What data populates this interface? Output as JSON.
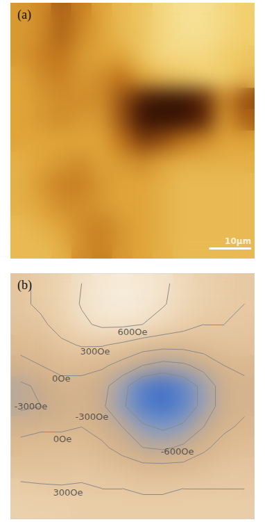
{
  "chart_data": [
    {
      "type": "heatmap",
      "title": "(a)",
      "tick_labels": false,
      "xlim": [
        0,
        58
      ],
      "ylim": [
        0,
        61
      ],
      "scale_bar": {
        "label": "10μm",
        "length": 10
      },
      "color_range": [
        0,
        1
      ],
      "cells": [
        [
          0.55,
          0.5,
          0.35,
          0.45,
          0.6,
          0.7,
          0.75,
          0.85,
          0.9,
          0.9,
          0.85,
          0.8
        ],
        [
          0.55,
          0.5,
          0.35,
          0.5,
          0.6,
          0.7,
          0.75,
          0.85,
          0.9,
          0.9,
          0.85,
          0.8
        ],
        [
          0.55,
          0.45,
          0.4,
          0.55,
          0.6,
          0.6,
          0.75,
          0.85,
          0.85,
          0.85,
          0.8,
          0.75
        ],
        [
          0.6,
          0.5,
          0.45,
          0.55,
          0.5,
          0.4,
          0.6,
          0.7,
          0.75,
          0.8,
          0.8,
          0.7
        ],
        [
          0.6,
          0.55,
          0.5,
          0.5,
          0.5,
          0.3,
          0.1,
          0.05,
          0.05,
          0.15,
          0.5,
          0.3
        ],
        [
          0.6,
          0.55,
          0.5,
          0.55,
          0.55,
          0.3,
          0.05,
          0.03,
          0.05,
          0.15,
          0.55,
          0.35
        ],
        [
          0.6,
          0.6,
          0.6,
          0.6,
          0.6,
          0.4,
          0.25,
          0.3,
          0.4,
          0.5,
          0.6,
          0.6
        ],
        [
          0.65,
          0.6,
          0.55,
          0.5,
          0.6,
          0.55,
          0.5,
          0.6,
          0.65,
          0.65,
          0.65,
          0.65
        ],
        [
          0.65,
          0.55,
          0.45,
          0.45,
          0.55,
          0.6,
          0.6,
          0.65,
          0.7,
          0.7,
          0.7,
          0.7
        ],
        [
          0.65,
          0.6,
          0.5,
          0.5,
          0.55,
          0.6,
          0.6,
          0.65,
          0.7,
          0.7,
          0.7,
          0.7
        ],
        [
          0.7,
          0.65,
          0.6,
          0.5,
          0.45,
          0.55,
          0.6,
          0.65,
          0.7,
          0.7,
          0.7,
          0.7
        ],
        [
          0.7,
          0.7,
          0.65,
          0.5,
          0.45,
          0.55,
          0.6,
          0.65,
          0.7,
          0.7,
          0.7,
          0.7
        ]
      ]
    },
    {
      "type": "contour",
      "title": "(b)",
      "tick_labels": false,
      "color_range": [
        -1000,
        800
      ],
      "cells": [
        [
          250,
          350,
          450,
          600,
          700,
          750,
          700,
          650,
          500,
          400,
          350,
          300
        ],
        [
          250,
          350,
          450,
          620,
          720,
          780,
          720,
          620,
          500,
          400,
          350,
          300
        ],
        [
          200,
          250,
          400,
          550,
          650,
          650,
          600,
          500,
          400,
          300,
          300,
          250
        ],
        [
          100,
          150,
          250,
          320,
          320,
          250,
          150,
          100,
          100,
          150,
          200,
          200
        ],
        [
          -100,
          0,
          100,
          100,
          50,
          -100,
          -300,
          -400,
          -350,
          -200,
          0,
          50
        ],
        [
          -350,
          -250,
          -100,
          -100,
          -200,
          -500,
          -850,
          -950,
          -800,
          -500,
          -150,
          -50
        ],
        [
          -350,
          -300,
          -150,
          -100,
          -250,
          -550,
          -850,
          -950,
          -800,
          -500,
          -150,
          -50
        ],
        [
          -100,
          -50,
          -50,
          0,
          -100,
          -300,
          -550,
          -650,
          -550,
          -300,
          -50,
          50
        ],
        [
          100,
          150,
          150,
          150,
          50,
          -100,
          -300,
          -350,
          -250,
          -50,
          100,
          150
        ],
        [
          200,
          200,
          200,
          250,
          200,
          150,
          100,
          100,
          100,
          150,
          250,
          250
        ],
        [
          350,
          330,
          320,
          320,
          300,
          300,
          280,
          280,
          300,
          300,
          300,
          300
        ],
        [
          400,
          400,
          400,
          350,
          350,
          350,
          350,
          350,
          350,
          350,
          350,
          350
        ]
      ],
      "annotations": [
        {
          "label": "600Oe",
          "value": 600,
          "x": 5.5,
          "y": 2.35
        },
        {
          "label": "300Oe",
          "value": 300,
          "x": 3.66,
          "y": 3.3
        },
        {
          "label": "0Oe",
          "value": 0,
          "x": 2.0,
          "y": 4.65
        },
        {
          "label": "-300Oe",
          "value": -300,
          "x": 0.5,
          "y": 6.0
        },
        {
          "label": "-300Oe",
          "value": -300,
          "x": 3.5,
          "y": 6.5
        },
        {
          "label": "0Oe",
          "value": 0,
          "x": 2.06,
          "y": 7.6
        },
        {
          "label": "-600Oe",
          "value": -600,
          "x": 7.7,
          "y": 8.2
        },
        {
          "label": "300Oe",
          "value": 300,
          "x": 2.33,
          "y": 10.2
        }
      ]
    }
  ]
}
